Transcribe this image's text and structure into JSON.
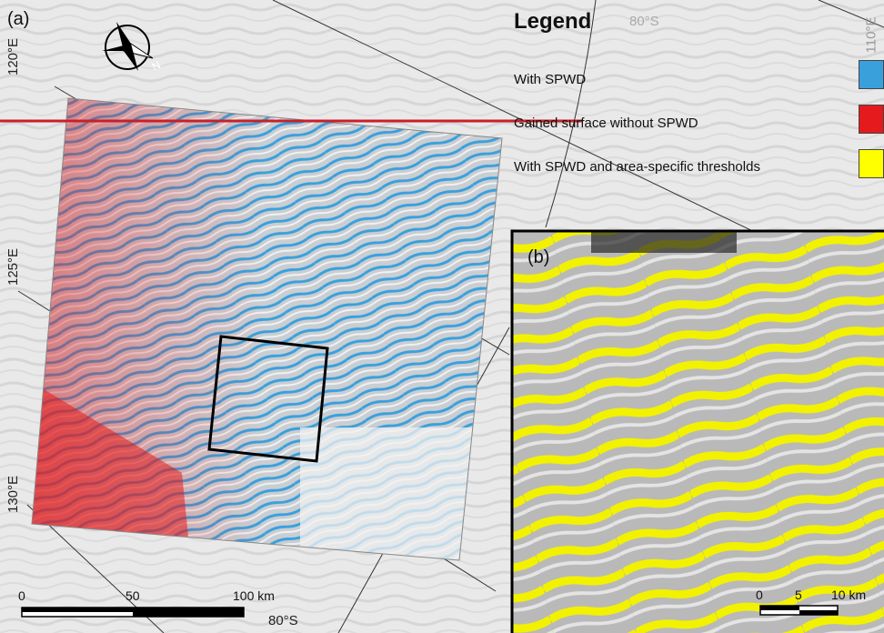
{
  "panels": {
    "a": "(a)",
    "b": "(b)"
  },
  "coords": {
    "lon_120": "120°E",
    "lon_125": "125°E",
    "lon_130": "130°E",
    "lon_110": "110°E",
    "lat_80_top": "80°S",
    "lat_80_bottom": "80°S"
  },
  "legend": {
    "title": "Legend",
    "items": [
      {
        "label": "With SPWD",
        "color": "#3aa0dc"
      },
      {
        "label": "Gained surface without SPWD",
        "color": "#e41a1c"
      },
      {
        "label": "With SPWD and area-specific thresholds",
        "color": "#ffff00"
      }
    ]
  },
  "scale_a": {
    "ticks": [
      "0",
      "50",
      "100 km"
    ]
  },
  "scale_b": {
    "ticks": [
      "0",
      "5",
      "10 km"
    ]
  },
  "colors": {
    "blue": "#3aa0dc",
    "red": "#e41a1c",
    "yellow": "#f2f200",
    "bg": "#e9e9e9"
  }
}
